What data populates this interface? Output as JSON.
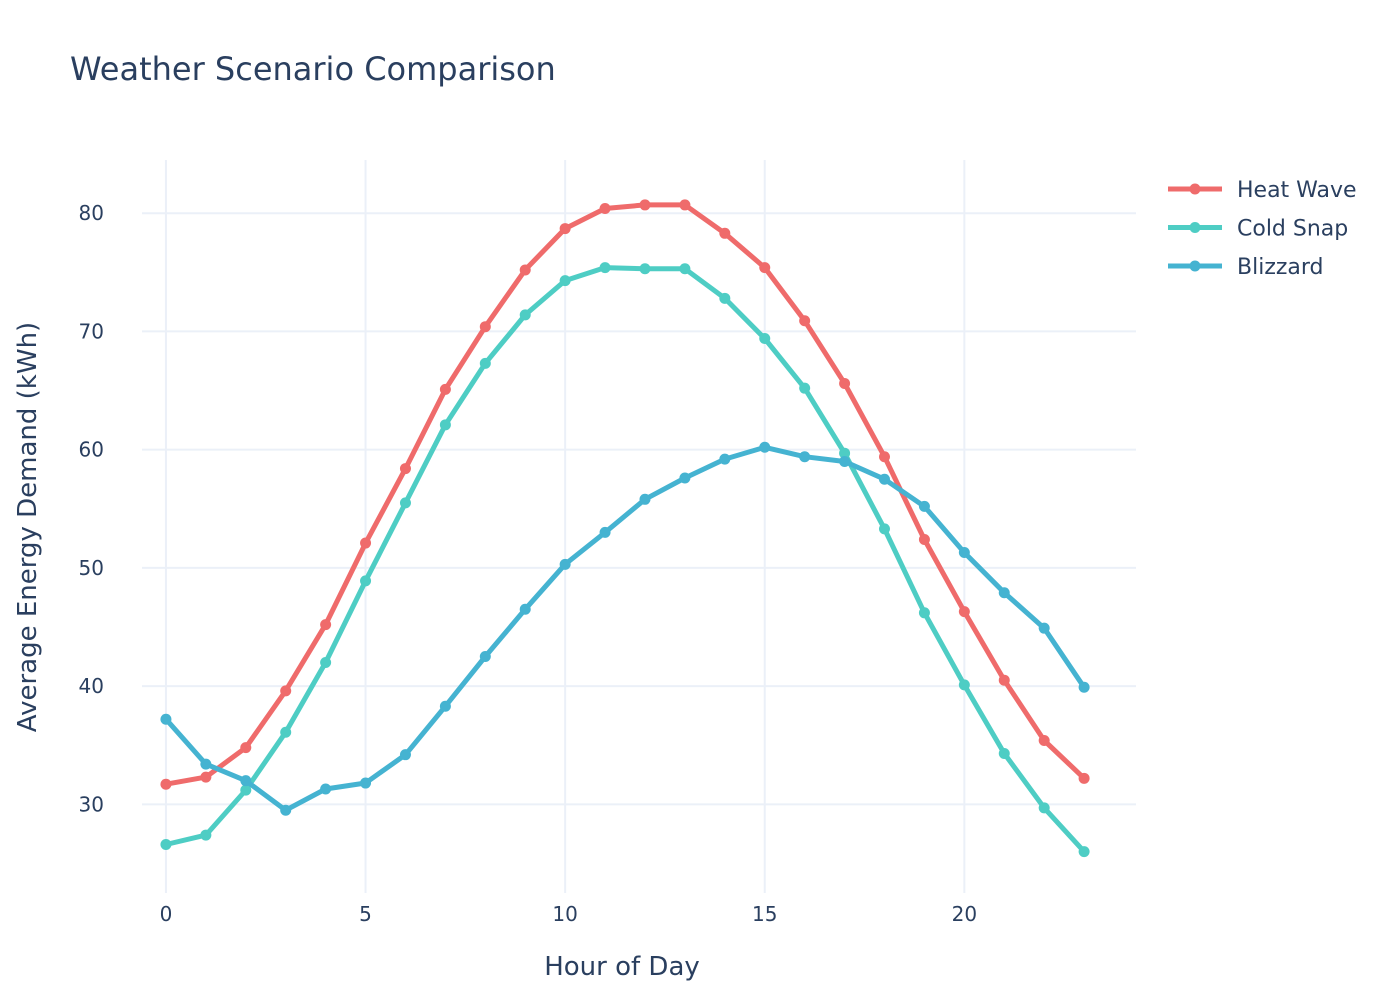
{
  "chart_data": {
    "type": "line",
    "title": "Weather Scenario Comparison",
    "xlabel": "Hour of Day",
    "ylabel": "Average Energy Demand (kWh)",
    "x": [
      0,
      1,
      2,
      3,
      4,
      5,
      6,
      7,
      8,
      9,
      10,
      11,
      12,
      13,
      14,
      15,
      16,
      17,
      18,
      19,
      20,
      21,
      22,
      23
    ],
    "xlim": [
      -0.6,
      24.3
    ],
    "ylim": [
      22.5,
      84.5
    ],
    "xticks": [
      0,
      5,
      10,
      15,
      20
    ],
    "xtick_labels": [
      "0",
      "5",
      "10",
      "15",
      "20"
    ],
    "yticks": [
      30,
      40,
      50,
      60,
      70,
      80
    ],
    "ytick_labels": [
      "30",
      "40",
      "50",
      "60",
      "70",
      "80"
    ],
    "grid": true,
    "legend_position": "top-right",
    "series": [
      {
        "name": "Heat Wave",
        "color": "#EF6B6B",
        "values": [
          31.7,
          32.3,
          34.8,
          39.6,
          45.2,
          52.1,
          58.4,
          65.1,
          70.4,
          75.2,
          78.7,
          80.4,
          80.7,
          80.7,
          78.3,
          75.4,
          70.9,
          65.6,
          59.4,
          52.4,
          46.3,
          40.5,
          35.4,
          32.2
        ]
      },
      {
        "name": "Cold Snap",
        "color": "#4ECDC4",
        "values": [
          26.6,
          27.4,
          31.2,
          36.1,
          42.0,
          48.9,
          55.5,
          62.1,
          67.3,
          71.4,
          74.3,
          75.4,
          75.3,
          75.3,
          72.8,
          69.4,
          65.2,
          59.7,
          53.3,
          46.2,
          40.1,
          34.3,
          29.7,
          26.0
        ]
      },
      {
        "name": "Blizzard",
        "color": "#45B3D1",
        "values": [
          37.2,
          33.4,
          32.0,
          29.5,
          31.3,
          31.8,
          34.2,
          38.3,
          42.5,
          46.5,
          50.3,
          53.0,
          55.8,
          57.6,
          59.2,
          60.2,
          59.4,
          59.0,
          57.5,
          55.2,
          51.3,
          47.9,
          44.9,
          39.9
        ]
      }
    ]
  }
}
